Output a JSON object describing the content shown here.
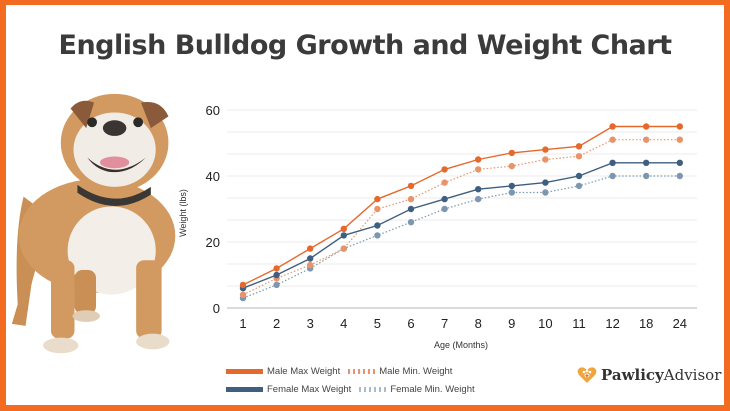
{
  "page": {
    "title": "English Bulldog Growth and Weight Chart"
  },
  "colors": {
    "border": "#F26B21",
    "male_max": "#E5692C",
    "male_min": "#E9936A",
    "female_max": "#3F5F80",
    "female_min": "#7E97B0",
    "grid": "#EBEBEB"
  },
  "chart_data": {
    "type": "line",
    "title": "English Bulldog Growth and Weight Chart",
    "xlabel": "Age (Months)",
    "ylabel": "Weight (lbs)",
    "categories": [
      "1",
      "2",
      "3",
      "4",
      "5",
      "6",
      "7",
      "8",
      "9",
      "10",
      "11",
      "12",
      "18",
      "24"
    ],
    "yticks": [
      0,
      20,
      40,
      60
    ],
    "ylim": [
      0,
      60
    ],
    "grid": true,
    "legend_position": "bottom",
    "series": [
      {
        "name": "Male Max Weight",
        "style": "solid",
        "values": [
          7,
          12,
          18,
          24,
          33,
          37,
          42,
          45,
          47,
          48,
          49,
          55,
          55,
          55
        ]
      },
      {
        "name": "Male Min. Weight",
        "style": "dotted",
        "values": [
          4,
          9,
          13,
          18,
          30,
          33,
          38,
          42,
          43,
          45,
          46,
          51,
          51,
          51
        ]
      },
      {
        "name": "Female Max Weight",
        "style": "solid",
        "values": [
          6,
          10,
          15,
          22,
          25,
          30,
          33,
          36,
          37,
          38,
          40,
          44,
          44,
          44
        ]
      },
      {
        "name": "Female Min. Weight",
        "style": "dotted",
        "values": [
          3,
          7,
          12,
          18,
          22,
          26,
          30,
          33,
          35,
          35,
          37,
          40,
          40,
          40
        ]
      }
    ]
  },
  "legend": {
    "male_max": "Male Max Weight",
    "male_min": "Male Min. Weight",
    "female_max": "Female Max Weight",
    "female_min": "Female Min. Weight"
  },
  "logo": {
    "bold": "Pawlicy",
    "regular": "Advisor"
  },
  "image": {
    "icon": "bulldog-photo"
  }
}
